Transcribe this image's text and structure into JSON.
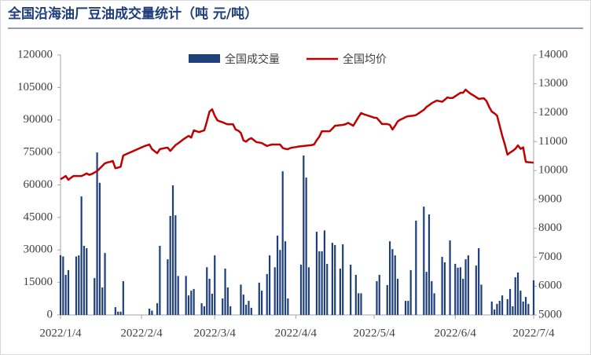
{
  "chart_data": {
    "type": "bar-line",
    "title": "全国沿海油厂豆油成交量统计（吨 元/吨）",
    "categories": [
      "2022/1/4",
      null,
      null,
      null,
      null,
      null,
      null,
      null,
      null,
      null,
      null,
      null,
      null,
      null,
      null,
      null,
      null,
      null,
      null,
      null,
      null,
      null,
      null,
      null,
      null,
      null,
      null,
      null,
      null,
      null,
      null,
      "2022/2/4",
      null,
      null,
      null,
      null,
      null,
      null,
      null,
      null,
      null,
      null,
      null,
      null,
      null,
      null,
      null,
      null,
      null,
      null,
      null,
      null,
      null,
      null,
      null,
      null,
      null,
      null,
      null,
      "2022/3/4",
      null,
      null,
      null,
      null,
      null,
      null,
      null,
      null,
      null,
      null,
      null,
      null,
      null,
      null,
      null,
      null,
      null,
      null,
      null,
      null,
      null,
      null,
      null,
      null,
      null,
      null,
      null,
      null,
      null,
      null,
      "2022/4/4",
      null,
      null,
      null,
      null,
      null,
      null,
      null,
      null,
      null,
      null,
      null,
      null,
      null,
      null,
      null,
      null,
      null,
      null,
      null,
      null,
      null,
      null,
      null,
      null,
      null,
      null,
      null,
      null,
      null,
      "2022/5/4",
      null,
      null,
      null,
      null,
      null,
      null,
      null,
      null,
      null,
      null,
      null,
      null,
      null,
      null,
      null,
      null,
      null,
      null,
      null,
      null,
      null,
      null,
      null,
      null,
      null,
      null,
      null,
      null,
      null,
      null,
      "2022/6/4",
      null,
      null,
      null,
      null,
      null,
      null,
      null,
      null,
      null,
      null,
      null,
      null,
      null,
      null,
      null,
      null,
      null,
      null,
      null,
      null,
      null,
      null,
      null,
      null,
      null,
      null,
      null,
      null,
      null,
      "2022/7/4"
    ],
    "series": [
      {
        "name": "全国成交量",
        "type": "bar",
        "color": "#1f3f7a",
        "values": [
          27550,
          27000,
          18500,
          20700,
          null,
          null,
          27000,
          27500,
          54700,
          31900,
          30800,
          null,
          null,
          17000,
          75000,
          61000,
          12700,
          28600,
          null,
          null,
          null,
          3600,
          1500,
          1500,
          15600,
          null,
          null,
          null,
          null,
          null,
          null,
          null,
          null,
          null,
          2900,
          2000,
          null,
          5400,
          31900,
          null,
          null,
          25700,
          45700,
          59800,
          46000,
          18000,
          null,
          null,
          18000,
          9000,
          11200,
          12000,
          null,
          null,
          5400,
          4000,
          22000,
          16700,
          9800,
          27500,
          null,
          null,
          7600,
          21400,
          12700,
          4000,
          null,
          null,
          null,
          14000,
          9400,
          4700,
          6500,
          3300,
          null,
          null,
          14900,
          11200,
          null,
          18900,
          27500,
          null,
          22000,
          36600,
          30000,
          66300,
          34000,
          7600,
          null,
          null,
          null,
          null,
          23200,
          73600,
          63400,
          22000,
          null,
          null,
          38400,
          29400,
          29400,
          39000,
          23600,
          null,
          33300,
          32300,
          null,
          21400,
          32600,
          null,
          null,
          23200,
          null,
          18500,
          10000,
          10000,
          null,
          null,
          null,
          null,
          null,
          15600,
          18500,
          null,
          null,
          13800,
          34000,
          30400,
          27500,
          16700,
          null,
          null,
          6500,
          6500,
          20700,
          null,
          43500,
          null,
          null,
          50000,
          19900,
          46400,
          15600,
          10000,
          null,
          null,
          26800,
          24300,
          null,
          34400,
          null,
          23600,
          21800,
          22000,
          16700,
          25700,
          27500,
          null,
          null,
          22800,
          30800,
          14000,
          null,
          null,
          null,
          6200,
          2500,
          5100,
          6500,
          9000,
          null,
          7300,
          12000,
          4000,
          17400,
          19600,
          11200,
          6200,
          8300,
          5100,
          null,
          16000
        ]
      },
      {
        "name": "全国均价",
        "type": "line",
        "axis": "y2",
        "color": "#c00000",
        "values": [
          9700,
          9750,
          9810,
          9680,
          9750,
          9810,
          9810,
          9810,
          9810,
          9850,
          9900,
          9850,
          9880,
          9930,
          9980,
          10070,
          10160,
          10250,
          10280,
          10300,
          10330,
          10080,
          10100,
          10130,
          10520,
          10560,
          10600,
          10640,
          10680,
          10720,
          10760,
          10800,
          10840,
          10870,
          10900,
          10740,
          10670,
          10600,
          10740,
          10760,
          10780,
          10790,
          10680,
          10780,
          10880,
          10940,
          11010,
          11080,
          11140,
          11200,
          11140,
          11390,
          11360,
          11330,
          11360,
          11390,
          11700,
          12040,
          12120,
          11900,
          11740,
          11700,
          11670,
          11630,
          11600,
          11600,
          11600,
          11420,
          11380,
          11300,
          11040,
          11000,
          11080,
          11120,
          11050,
          10980,
          10970,
          10950,
          10900,
          10850,
          10880,
          10900,
          10900,
          10900,
          10900,
          10780,
          10750,
          10740,
          10780,
          10800,
          10810,
          10830,
          10840,
          10850,
          10860,
          10870,
          10880,
          10900,
          11050,
          11170,
          11360,
          11360,
          11360,
          11360,
          11450,
          11550,
          11560,
          11570,
          11580,
          11600,
          11650,
          11600,
          11550,
          11700,
          11850,
          11990,
          11950,
          11920,
          11890,
          11860,
          11830,
          11820,
          11720,
          11610,
          11610,
          11610,
          11580,
          11420,
          11550,
          11700,
          11760,
          11800,
          11850,
          11880,
          11890,
          11900,
          11920,
          11980,
          12040,
          12100,
          12200,
          12260,
          12330,
          12380,
          12420,
          12400,
          12380,
          12450,
          12530,
          12510,
          12510,
          12570,
          12630,
          12690,
          12690,
          12800,
          12720,
          12650,
          12600,
          12540,
          12480,
          12490,
          12500,
          12400,
          12200,
          12040,
          11980,
          11900,
          11550,
          11200,
          10900,
          10550,
          10620,
          10680,
          10750,
          10870,
          10750,
          10800,
          10300,
          10290,
          10280,
          10270
        ]
      }
    ],
    "ylim": [
      0,
      120000
    ],
    "yticks": [
      0,
      15000,
      30000,
      45000,
      60000,
      75000,
      90000,
      105000,
      120000
    ],
    "y2lim": [
      5000,
      14000
    ],
    "y2ticks": [
      5000,
      6000,
      7000,
      8000,
      9000,
      10000,
      11000,
      12000,
      13000,
      14000
    ],
    "grid": false,
    "legend": "top"
  }
}
